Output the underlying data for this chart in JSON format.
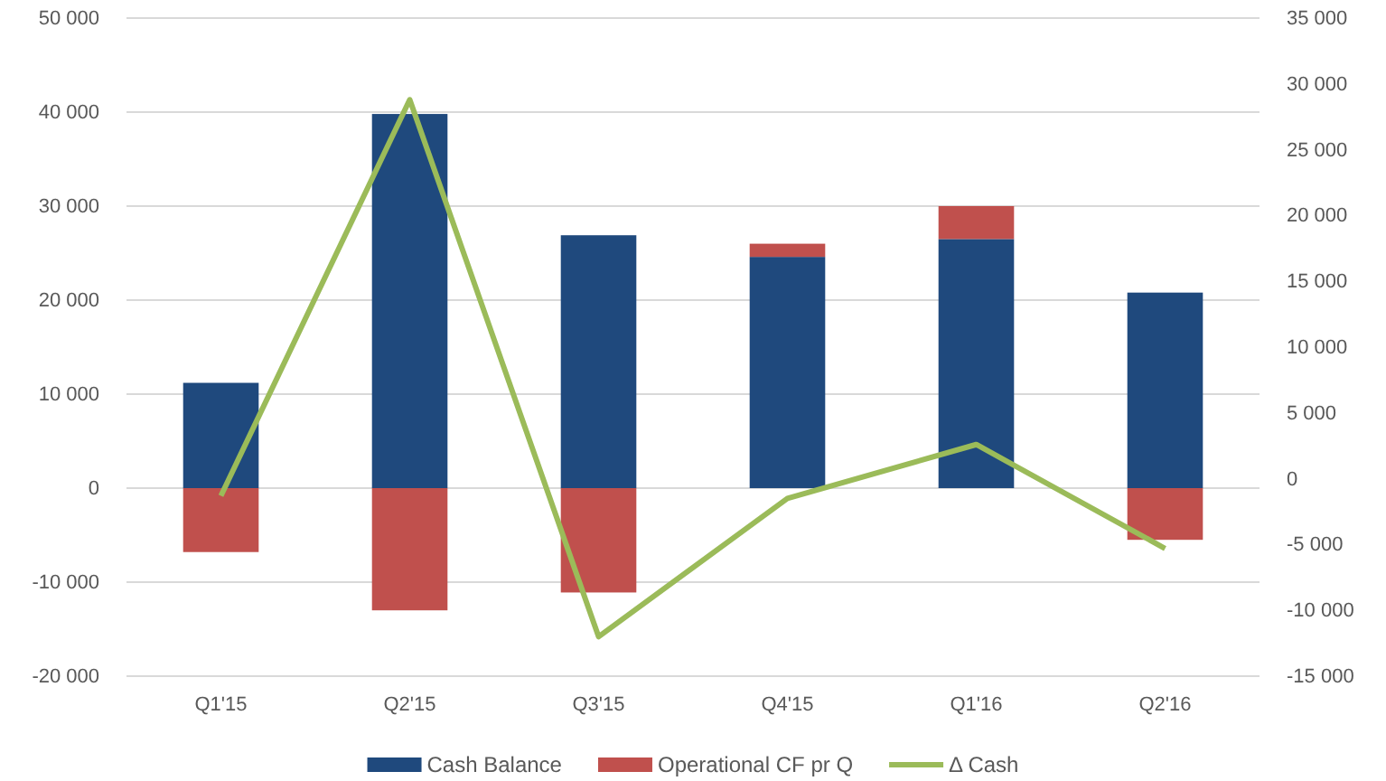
{
  "chart_data": {
    "type": "bar",
    "stacked": true,
    "categories": [
      "Q1'15",
      "Q2'15",
      "Q3'15",
      "Q4'15",
      "Q1'16",
      "Q2'16"
    ],
    "series": [
      {
        "name": "Cash Balance",
        "color": "#1f497d",
        "values": [
          11200,
          39800,
          26900,
          24600,
          26500,
          20800
        ]
      },
      {
        "name": "Operational CF pr Q",
        "color": "#c0504d",
        "values": [
          -6800,
          -13000,
          -11100,
          1400,
          3500,
          -5500
        ]
      },
      {
        "name": "Δ Cash",
        "type": "line",
        "axis": "y2",
        "color": "#9bbb59",
        "values": [
          -1300,
          28800,
          -12000,
          -1500,
          2600,
          -5300
        ]
      }
    ],
    "ylim": [
      -20000,
      50000
    ],
    "yticks": [
      {
        "value": -20000,
        "label": "-20 000"
      },
      {
        "value": -10000,
        "label": "-10 000"
      },
      0,
      {
        "value": 10000,
        "label": "10 000"
      },
      {
        "value": 20000,
        "label": "20 000"
      },
      {
        "value": 30000,
        "label": "30 000"
      },
      {
        "value": 40000,
        "label": "40 000"
      },
      {
        "value": 50000,
        "label": "50 000"
      }
    ],
    "y2lim": [
      -15000,
      35000
    ],
    "y2ticks": [
      {
        "value": -15000,
        "label": "-15 000"
      },
      {
        "value": -10000,
        "label": "-10 000"
      },
      {
        "value": -5000,
        "label": "-5 000"
      },
      0,
      {
        "value": 5000,
        "label": "5 000"
      },
      {
        "value": 10000,
        "label": "10 000"
      },
      {
        "value": 15000,
        "label": "15 000"
      },
      {
        "value": 20000,
        "label": "20 000"
      },
      {
        "value": 25000,
        "label": "25 000"
      },
      {
        "value": 30000,
        "label": "30 000"
      },
      {
        "value": 35000,
        "label": "35 000"
      }
    ],
    "grid": "y",
    "legend": "bottom",
    "marker": "none",
    "line_style": "solid"
  }
}
